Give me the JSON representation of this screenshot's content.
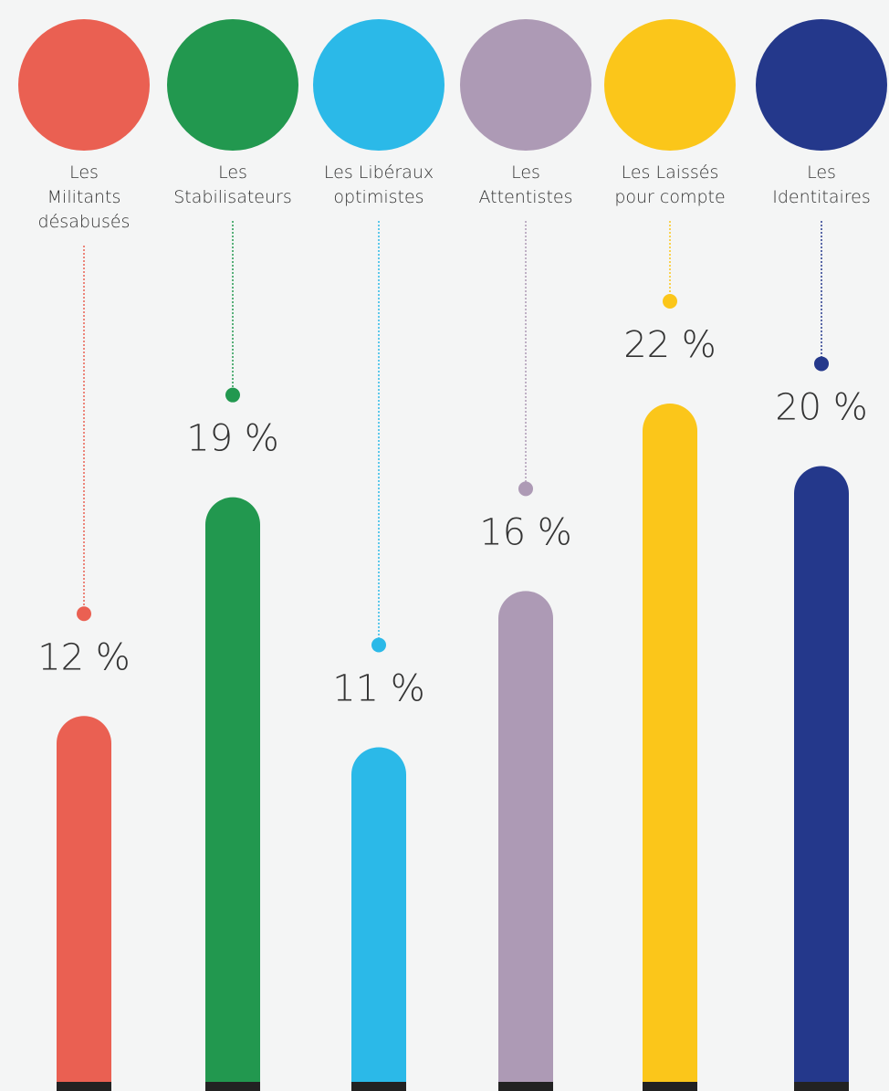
{
  "chart_data": {
    "type": "bar",
    "categories": [
      "Les\nMilitants\ndésabusés",
      "Les\nStabilisateurs",
      "Les Libéraux\noptimistes",
      "Les\nAttentistes",
      "Les Laissés\npour compte",
      "Les\nIdentitaires"
    ],
    "values": [
      12,
      19,
      11,
      16,
      22,
      20
    ],
    "value_labels": [
      "12 %",
      "19 %",
      "11 %",
      "16 %",
      "22 %",
      "20 %"
    ],
    "colors": [
      "#ea6052",
      "#22984f",
      "#2bb9e8",
      "#ad9ab5",
      "#fbc61a",
      "#24388b"
    ],
    "ylim": [
      0,
      22
    ]
  }
}
